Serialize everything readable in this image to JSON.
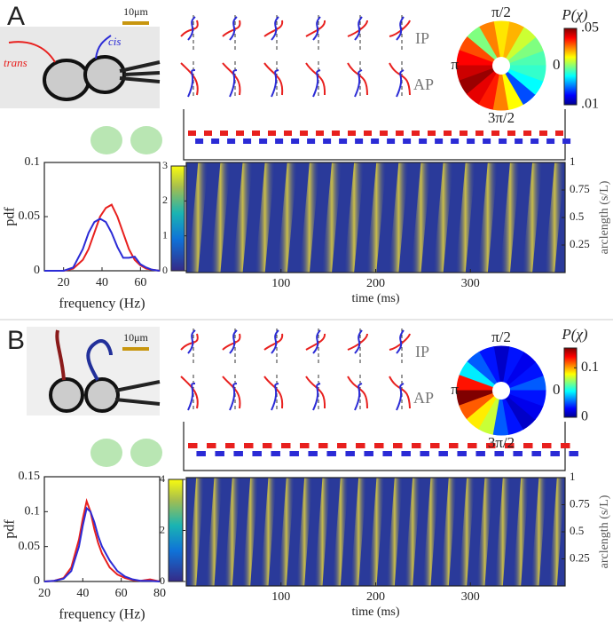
{
  "panels": [
    {
      "letter": "A",
      "scale_bar": "10μm",
      "trans": "trans",
      "cis": "cis",
      "rows": [
        "IP",
        "AP"
      ]
    },
    {
      "letter": "B",
      "scale_bar": "10μm",
      "rows": [
        "IP",
        "AP"
      ]
    }
  ],
  "chart_data": [
    {
      "type": "line",
      "xlabel": "frequency (Hz)",
      "ylabel": "pdf",
      "x": [
        10,
        15,
        20,
        25,
        30,
        33,
        36,
        39,
        42,
        45,
        48,
        51,
        54,
        57,
        60,
        63,
        66,
        70
      ],
      "xlim": [
        10,
        70
      ],
      "xticks": [
        20,
        40,
        60
      ],
      "ylim": [
        0,
        0.1
      ],
      "yticks": [
        0,
        0.05,
        0.1
      ],
      "series": [
        {
          "color": "#e8201e",
          "values": [
            0,
            0,
            0,
            0.002,
            0.01,
            0.02,
            0.035,
            0.05,
            0.058,
            0.061,
            0.05,
            0.035,
            0.02,
            0.01,
            0.005,
            0.002,
            0.001,
            0
          ]
        },
        {
          "color": "#2b2bd6",
          "values": [
            0,
            0,
            0,
            0.003,
            0.02,
            0.035,
            0.045,
            0.048,
            0.045,
            0.035,
            0.022,
            0.012,
            0.012,
            0.013,
            0.006,
            0.003,
            0.001,
            0
          ]
        }
      ]
    },
    {
      "type": "heatmap",
      "xlabel": "time (ms)",
      "ylabel": "arclength (s/L)",
      "xlim": [
        0,
        400
      ],
      "xticks": [
        100,
        200,
        300
      ],
      "ylim": [
        0,
        1
      ],
      "yticks": [
        0.25,
        0.5,
        0.75,
        1
      ],
      "clim": [
        0,
        3
      ],
      "cticks": [
        0,
        1,
        2,
        3
      ]
    },
    {
      "type": "polar",
      "colorbar_label": "P(χ)",
      "angle_labels": [
        "π/2",
        "0",
        "π",
        "3π/2"
      ],
      "values": [
        0.028,
        0.03,
        0.033,
        0.038,
        0.036,
        0.04,
        0.03,
        0.042,
        0.045,
        0.047,
        0.049,
        0.046,
        0.044,
        0.04,
        0.035,
        0.018,
        0.025,
        0.027
      ],
      "clim": [
        0.01,
        0.05
      ],
      "cticks": [
        {
          "value": 0.05,
          "label": ".05"
        },
        {
          "value": 0.01,
          "label": ".01"
        }
      ]
    },
    {
      "type": "line",
      "xlabel": "frequency (Hz)",
      "ylabel": "pdf",
      "x": [
        20,
        25,
        30,
        34,
        38,
        40,
        42,
        44,
        46,
        48,
        50,
        54,
        58,
        62,
        66,
        70,
        75,
        80
      ],
      "xlim": [
        20,
        80
      ],
      "xticks": [
        20,
        40,
        60,
        80
      ],
      "ylim": [
        0,
        0.15
      ],
      "yticks": [
        0,
        0.05,
        0.1,
        0.15
      ],
      "series": [
        {
          "color": "#e8201e",
          "values": [
            0,
            0.001,
            0.005,
            0.02,
            0.06,
            0.09,
            0.115,
            0.1,
            0.075,
            0.055,
            0.04,
            0.02,
            0.01,
            0.005,
            0.002,
            0.001,
            0.003,
            0
          ]
        },
        {
          "color": "#2b2bd6",
          "values": [
            0,
            0.001,
            0.004,
            0.015,
            0.05,
            0.08,
            0.105,
            0.1,
            0.085,
            0.065,
            0.05,
            0.03,
            0.015,
            0.007,
            0.003,
            0.001,
            0.001,
            0
          ]
        }
      ]
    },
    {
      "type": "heatmap",
      "xlabel": "time (ms)",
      "ylabel": "arclength (s/L)",
      "xlim": [
        0,
        400
      ],
      "xticks": [
        100,
        200,
        300
      ],
      "ylim": [
        0,
        1
      ],
      "yticks": [
        0.25,
        0.5,
        0.75,
        1
      ],
      "clim": [
        0,
        4
      ],
      "cticks": [
        0,
        2,
        4
      ]
    },
    {
      "type": "polar",
      "colorbar_label": "P(χ)",
      "angle_labels": [
        "π/2",
        "0",
        "π",
        "3π/2"
      ],
      "values": [
        0.03,
        0.02,
        0.015,
        0.02,
        0.01,
        0.02,
        0.03,
        0.05,
        0.12,
        0.14,
        0.11,
        0.09,
        0.08,
        0.03,
        0.02,
        0.01,
        0.015,
        0.02
      ],
      "clim": [
        0,
        0.14
      ],
      "cticks": [
        0.1,
        0
      ]
    }
  ]
}
